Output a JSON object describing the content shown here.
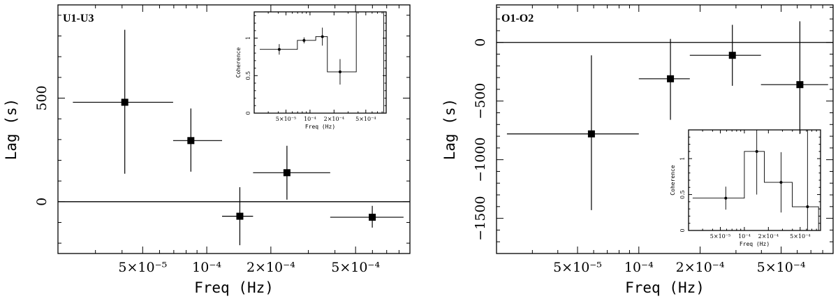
{
  "chart_data": [
    {
      "type": "scatter",
      "title": "U1-U3",
      "xlabel": "Freq (Hz)",
      "ylabel": "Lag (s)",
      "xscale": "log",
      "xlim": [
        2e-05,
        0.0009
      ],
      "ylim": [
        -250,
        950
      ],
      "x_tick_labels": [
        "5×10⁻⁵",
        "10⁻⁴",
        "2×10⁻⁴",
        "5×10⁻⁴"
      ],
      "x_ticks": [
        5e-05,
        0.0001,
        0.0002,
        0.0005
      ],
      "y_ticks": [
        0,
        500
      ],
      "y_tick_labels": [
        "0",
        "500"
      ],
      "zero_line": 0,
      "points": [
        {
          "x": 4.12e-05,
          "xlo": 2.35e-05,
          "xhi": 6.95e-05,
          "y": 480,
          "ylo": 135,
          "yhi": 830
        },
        {
          "x": 8.42e-05,
          "xlo": 6.95e-05,
          "xhi": 0.000118,
          "y": 295,
          "ylo": 145,
          "yhi": 450
        },
        {
          "x": 0.000143,
          "xlo": 0.000118,
          "xhi": 0.000165,
          "y": -70,
          "ylo": -210,
          "yhi": 70
        },
        {
          "x": 0.000238,
          "xlo": 0.000165,
          "xhi": 0.00038,
          "y": 140,
          "ylo": 10,
          "yhi": 270
        },
        {
          "x": 0.000599,
          "xlo": 0.00038,
          "xhi": 0.00084,
          "y": -75,
          "ylo": -125,
          "yhi": -20
        }
      ],
      "inset": {
        "xlabel": "Freq (Hz)",
        "ylabel": "Coherence",
        "xscale": "log",
        "xlim": [
          2e-05,
          0.0009
        ],
        "ylim": [
          0,
          1.35
        ],
        "x_ticks": [
          5e-05,
          0.0001,
          0.0002,
          0.0005
        ],
        "x_tick_labels": [
          "5×10⁻⁵",
          "10⁻⁴",
          "2×10⁻⁴",
          "5×10⁻⁴"
        ],
        "y_ticks": [
          0,
          0.5,
          1
        ],
        "y_tick_labels": [
          "0",
          "0.5",
          "1"
        ],
        "steps": [
          {
            "x0": 2.35e-05,
            "x1": 6.95e-05,
            "y": 0.85
          },
          {
            "x0": 6.95e-05,
            "x1": 0.000118,
            "y": 0.97
          },
          {
            "x0": 0.000118,
            "x1": 0.000165,
            "y": 1.02
          },
          {
            "x0": 0.000165,
            "x1": 0.00038,
            "y": 0.55
          },
          {
            "x0": 0.00038,
            "x1": 0.00084,
            "y": 1.4
          }
        ],
        "points": [
          {
            "x": 4.12e-05,
            "y": 0.85,
            "ylo": 0.78,
            "yhi": 0.92
          },
          {
            "x": 8.42e-05,
            "y": 0.97,
            "ylo": 0.93,
            "yhi": 1.01
          },
          {
            "x": 0.000143,
            "y": 1.02,
            "ylo": 0.9,
            "yhi": 1.14
          },
          {
            "x": 0.000238,
            "y": 0.55,
            "ylo": 0.38,
            "yhi": 0.72
          }
        ]
      }
    },
    {
      "type": "scatter",
      "title": "O1-O2",
      "xlabel": "Freq (Hz)",
      "ylabel": "Lag (s)",
      "xscale": "log",
      "xlim": [
        2e-05,
        0.0009
      ],
      "ylim": [
        -1800,
        320
      ],
      "x_tick_labels": [
        "5×10⁻⁵",
        "10⁻⁴",
        "2×10⁻⁴",
        "5×10⁻⁴"
      ],
      "x_ticks": [
        5e-05,
        0.0001,
        0.0002,
        0.0005
      ],
      "y_ticks": [
        -1500,
        -1000,
        -500,
        0
      ],
      "y_tick_labels": [
        "−1500",
        "−1000",
        "−500",
        "0"
      ],
      "zero_line": 0,
      "points": [
        {
          "x": 5.85e-05,
          "xlo": 2.25e-05,
          "xhi": 0.0001,
          "y": -780,
          "ylo": -1430,
          "yhi": -110
        },
        {
          "x": 0.000143,
          "xlo": 0.0001,
          "xhi": 0.000178,
          "y": -310,
          "ylo": -660,
          "yhi": 30
        },
        {
          "x": 0.000288,
          "xlo": 0.000178,
          "xhi": 0.000398,
          "y": -110,
          "ylo": -370,
          "yhi": 150
        },
        {
          "x": 0.000618,
          "xlo": 0.000398,
          "xhi": 0.00085,
          "y": -360,
          "ylo": -780,
          "yhi": 180
        }
      ],
      "inset": {
        "xlabel": "Freq (Hz)",
        "ylabel": "Coherence",
        "xscale": "log",
        "xlim": [
          2e-05,
          0.0009
        ],
        "ylim": [
          0,
          1.4
        ],
        "x_ticks": [
          5e-05,
          0.0001,
          0.0002,
          0.0005
        ],
        "x_tick_labels": [
          "5×10⁻⁵",
          "10⁻⁴",
          "2×10⁻⁴",
          "5×10⁻⁴"
        ],
        "y_ticks": [
          0,
          0.5,
          1
        ],
        "y_tick_labels": [
          "0",
          "0.5",
          "1"
        ],
        "steps": [
          {
            "x0": 2.25e-05,
            "x1": 0.0001,
            "y": 0.45
          },
          {
            "x0": 0.0001,
            "x1": 0.000178,
            "y": 1.1
          },
          {
            "x0": 0.000178,
            "x1": 0.000398,
            "y": 0.67
          },
          {
            "x0": 0.000398,
            "x1": 0.00085,
            "y": 0.33
          }
        ],
        "points": [
          {
            "x": 5.85e-05,
            "y": 0.45,
            "ylo": 0.29,
            "yhi": 0.61
          },
          {
            "x": 0.000143,
            "y": 1.1,
            "ylo": 0.5,
            "yhi": 1.45
          },
          {
            "x": 0.000288,
            "y": 0.67,
            "ylo": 0.25,
            "yhi": 1.09
          },
          {
            "x": 0.000618,
            "y": 0.33,
            "ylo": 0.0,
            "yhi": 1.45
          }
        ]
      }
    }
  ]
}
